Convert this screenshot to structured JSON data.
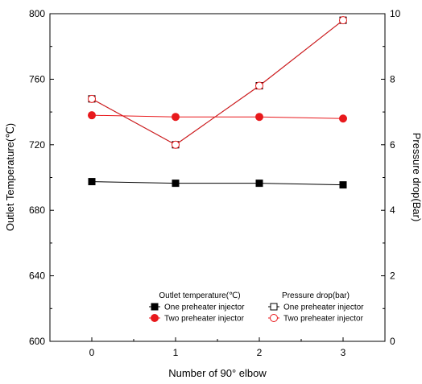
{
  "chart_data": {
    "type": "line",
    "xlabel": "Number of 90° elbow",
    "ylabel_left": "Outlet Temperature(℃)",
    "ylabel_right": "Pressure drop(Bar)",
    "x": [
      0,
      1,
      2,
      3
    ],
    "x_ticks": [
      "0",
      "1",
      "2",
      "3"
    ],
    "xlim": [
      -0.5,
      3.5
    ],
    "ylim_left": [
      600,
      800
    ],
    "yticks_left": [
      "600",
      "640",
      "680",
      "720",
      "760",
      "800"
    ],
    "ylim_right": [
      0,
      10
    ],
    "yticks_right": [
      "0",
      "2",
      "4",
      "6",
      "8",
      "10"
    ],
    "grid": false,
    "legend_position": "bottom-right",
    "legend_groups": [
      {
        "title": "Outlet temperature(℃)"
      },
      {
        "title": "Pressure drop(bar)"
      }
    ],
    "series": [
      {
        "name": "One preheater injector",
        "axis": "left",
        "marker": "square",
        "filled": true,
        "color": "#000000",
        "values": [
          697.5,
          696.5,
          696.5,
          695.5
        ]
      },
      {
        "name": "Two preheater injector",
        "axis": "left",
        "marker": "circle",
        "filled": true,
        "color": "#e8191c",
        "values": [
          738,
          737,
          737,
          736
        ]
      },
      {
        "name": "One preheater injector",
        "axis": "right",
        "marker": "square",
        "filled": false,
        "color": "#000000",
        "values": [
          7.4,
          6.0,
          7.8,
          9.8
        ]
      },
      {
        "name": "Two preheater injector",
        "axis": "right",
        "marker": "circle",
        "filled": false,
        "color": "#e8191c",
        "values": [
          7.4,
          6.0,
          7.8,
          9.8
        ]
      }
    ]
  }
}
